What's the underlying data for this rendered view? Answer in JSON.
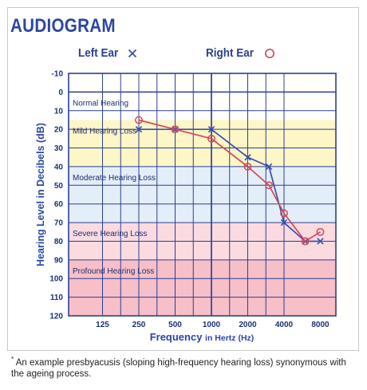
{
  "header": {
    "title": "AUDIOGRAM",
    "left_ear_label": "Left Ear",
    "right_ear_label": "Right Ear"
  },
  "footnote": {
    "mark": "*",
    "text": "An example presbyacusis (sloping high-frequency hearing loss) synonymous with the ageing process."
  },
  "chart_data": {
    "type": "line",
    "xlabel_main": "Frequency",
    "xlabel_sub": "in Hertz (Hz)",
    "ylabel": "Hearing Level in Decibels (dB)",
    "x_ticks": [
      "125",
      "250",
      "500",
      "1000",
      "2000",
      "4000",
      "8000"
    ],
    "y_ticks": [
      "-10",
      "0",
      "10",
      "20",
      "30",
      "40",
      "50",
      "60",
      "70",
      "80",
      "90",
      "100",
      "110",
      "120"
    ],
    "ylim": [
      -10,
      120
    ],
    "y_inverted": true,
    "bands": [
      {
        "label": "Normal Hearing",
        "from": 0,
        "to": 15,
        "color": "#ffffff"
      },
      {
        "label": "Mild Hearing Loss",
        "from": 15,
        "to": 40,
        "color": "#fdf6c6"
      },
      {
        "label": "Moderate Hearing Loss",
        "from": 40,
        "to": 70,
        "color": "#e4eef8"
      },
      {
        "label": "Severe Hearing Loss",
        "from": 70,
        "to": 90,
        "color": "#fbdbe0"
      },
      {
        "label": "Profound Hearing Loss",
        "from": 90,
        "to": 120,
        "color": "#f7bfc8"
      }
    ],
    "series": [
      {
        "name": "Left Ear",
        "marker": "cross",
        "color": "#3a4fb0",
        "points": [
          [
            250,
            20
          ],
          [
            500,
            20
          ],
          [
            1000,
            20
          ],
          [
            2000,
            35
          ],
          [
            3000,
            40
          ],
          [
            4000,
            70
          ],
          [
            6000,
            80
          ],
          [
            8000,
            80
          ]
        ]
      },
      {
        "name": "Right Ear",
        "marker": "circle",
        "color": "#d24a5a",
        "points": [
          [
            250,
            15
          ],
          [
            500,
            20
          ],
          [
            1000,
            25
          ],
          [
            2000,
            40
          ],
          [
            3000,
            50
          ],
          [
            4000,
            65
          ],
          [
            6000,
            80
          ],
          [
            8000,
            75
          ]
        ]
      }
    ],
    "colors": {
      "grid": "#2b3f94",
      "axis_text": "#1c2f78",
      "label": "#2a46a3"
    }
  }
}
